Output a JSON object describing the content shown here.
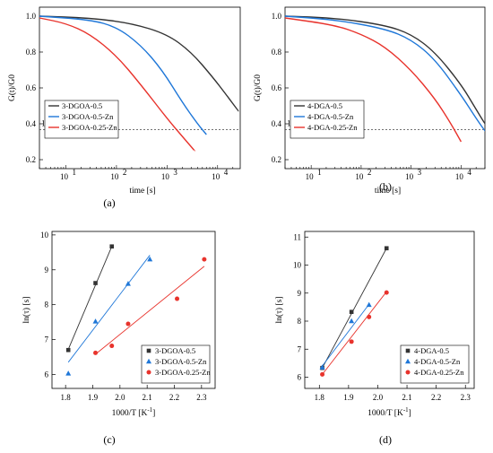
{
  "colors": {
    "black": "#333333",
    "blue": "#1f77d8",
    "red": "#e8332c",
    "dash": "#444444"
  },
  "chart_data": [
    {
      "panel": "a",
      "caption": "(a)",
      "type": "line",
      "xlabel": "time [s]",
      "ylabel": "G(t)/G0",
      "x_scale": "log",
      "xlim": [
        3,
        28000
      ],
      "ylim": [
        0.15,
        1.05
      ],
      "x_tick_labels": [
        "10",
        "10",
        "10",
        "10"
      ],
      "x_tick_exponents": [
        "1",
        "2",
        "3",
        "4"
      ],
      "y_tick_labels": [
        "0.2",
        "0.4",
        "0.6",
        "0.8",
        "1.0"
      ],
      "y_ticks": [
        0.2,
        0.4,
        0.6,
        0.8,
        1.0
      ],
      "reference_line": {
        "label": "1/e",
        "y": 0.368
      },
      "legend_position": "middle-left",
      "series": [
        {
          "name": "3-DGOA-0.5",
          "color": "black",
          "x": [
            3,
            30,
            200,
            1000,
            3000,
            8000,
            15000,
            26000
          ],
          "y": [
            1.0,
            0.99,
            0.96,
            0.9,
            0.8,
            0.66,
            0.56,
            0.47
          ]
        },
        {
          "name": "3-DGOA-0.5-Zn",
          "color": "blue",
          "x": [
            3,
            30,
            100,
            300,
            800,
            2000,
            4000,
            6000
          ],
          "y": [
            1.0,
            0.98,
            0.94,
            0.84,
            0.7,
            0.52,
            0.4,
            0.34
          ]
        },
        {
          "name": "3-DGOA-0.25-Zn",
          "color": "red",
          "x": [
            3,
            10,
            30,
            100,
            300,
            1000,
            2000,
            3500
          ],
          "y": [
            0.99,
            0.96,
            0.9,
            0.78,
            0.62,
            0.43,
            0.33,
            0.25
          ]
        }
      ]
    },
    {
      "panel": "b",
      "caption": "(b)",
      "type": "line",
      "xlabel": "time [s]",
      "ylabel": "G(t)/G0",
      "x_scale": "log",
      "xlim": [
        3,
        30000
      ],
      "ylim": [
        0.15,
        1.05
      ],
      "x_tick_labels": [
        "10",
        "10",
        "10",
        "10"
      ],
      "x_tick_exponents": [
        "1",
        "2",
        "3",
        "4"
      ],
      "y_tick_labels": [
        "0.2",
        "0.4",
        "0.6",
        "0.8",
        "1.0"
      ],
      "y_ticks": [
        0.2,
        0.4,
        0.6,
        0.8,
        1.0
      ],
      "reference_line": {
        "label": "1/e",
        "y": 0.368
      },
      "legend_position": "middle-left",
      "series": [
        {
          "name": "4-DGA-0.5",
          "color": "black",
          "x": [
            3,
            30,
            300,
            1000,
            3000,
            10000,
            20000,
            30000
          ],
          "y": [
            1.0,
            0.99,
            0.95,
            0.9,
            0.8,
            0.62,
            0.48,
            0.4
          ]
        },
        {
          "name": "4-DGA-0.5-Zn",
          "color": "blue",
          "x": [
            3,
            30,
            300,
            1000,
            3000,
            10000,
            20000,
            30000
          ],
          "y": [
            1.0,
            0.98,
            0.93,
            0.87,
            0.76,
            0.56,
            0.43,
            0.36
          ]
        },
        {
          "name": "4-DGA-0.25-Zn",
          "color": "red",
          "x": [
            3,
            30,
            100,
            300,
            1000,
            3000,
            6000,
            10000
          ],
          "y": [
            0.99,
            0.95,
            0.9,
            0.83,
            0.7,
            0.54,
            0.41,
            0.3
          ]
        }
      ]
    },
    {
      "panel": "c",
      "caption": "(c)",
      "type": "scatter",
      "xlabel": "1000/T [K",
      "xlabel_sup": "-1",
      "xlabel_end": "]",
      "ylabel": "ln(τ) [s]",
      "xlim": [
        1.75,
        2.35
      ],
      "ylim": [
        5.6,
        10.1
      ],
      "x_ticks": [
        1.8,
        1.9,
        2.0,
        2.1,
        2.2,
        2.3
      ],
      "x_tick_labels": [
        "1.8",
        "1.9",
        "2.0",
        "2.1",
        "2.2",
        "2.3"
      ],
      "y_ticks": [
        6,
        7,
        8,
        9,
        10
      ],
      "y_tick_labels": [
        "6",
        "7",
        "8",
        "9",
        "10"
      ],
      "legend_position": "bottom-right",
      "series": [
        {
          "name": "3-DGOA-0.5",
          "color": "black",
          "marker": "square",
          "x": [
            1.81,
            1.91,
            1.97
          ],
          "y": [
            6.7,
            8.62,
            9.67
          ],
          "fit": [
            [
              1.81,
              6.72
            ],
            [
              1.97,
              9.67
            ]
          ]
        },
        {
          "name": "3-DGOA-0.5-Zn",
          "color": "blue",
          "marker": "triangle",
          "x": [
            1.81,
            1.91,
            2.03,
            2.11
          ],
          "y": [
            6.03,
            7.52,
            8.6,
            9.3
          ],
          "fit": [
            [
              1.81,
              6.35
            ],
            [
              2.11,
              9.42
            ]
          ]
        },
        {
          "name": "3-DGOA-0.25-Zn",
          "color": "red",
          "marker": "circle",
          "x": [
            1.91,
            1.97,
            2.03,
            2.21,
            2.31
          ],
          "y": [
            6.62,
            6.82,
            7.45,
            8.17,
            9.3
          ],
          "fit": [
            [
              1.91,
              6.58
            ],
            [
              2.31,
              9.1
            ]
          ]
        }
      ]
    },
    {
      "panel": "d",
      "caption": "(d)",
      "type": "scatter",
      "xlabel": "1000/T [K",
      "xlabel_sup": "-1",
      "xlabel_end": "]",
      "ylabel": "ln(τ) [s]",
      "xlim": [
        1.75,
        2.33
      ],
      "ylim": [
        5.6,
        11.2
      ],
      "x_ticks": [
        1.8,
        1.9,
        2.0,
        2.1,
        2.2,
        2.3
      ],
      "x_tick_labels": [
        "1.8",
        "1.9",
        "2.0",
        "2.1",
        "2.2",
        "2.3"
      ],
      "y_ticks": [
        6,
        7,
        8,
        9,
        10,
        11
      ],
      "y_tick_labels": [
        "6",
        "7",
        "8",
        "9",
        "10",
        "11"
      ],
      "legend_position": "bottom-right",
      "series": [
        {
          "name": "4-DGA-0.5",
          "color": "black",
          "marker": "square",
          "x": [
            1.81,
            1.91,
            2.03
          ],
          "y": [
            6.33,
            8.33,
            10.6
          ],
          "fit": [
            [
              1.81,
              6.33
            ],
            [
              2.03,
              10.6
            ]
          ]
        },
        {
          "name": "4-DGA-0.5-Zn",
          "color": "blue",
          "marker": "triangle",
          "x": [
            1.81,
            1.91,
            1.97
          ],
          "y": [
            6.35,
            8.0,
            8.58
          ],
          "fit": [
            [
              1.81,
              6.4
            ],
            [
              1.97,
              8.6
            ]
          ]
        },
        {
          "name": "4-DGA-0.25-Zn",
          "color": "red",
          "marker": "circle",
          "x": [
            1.81,
            1.91,
            1.97,
            2.03
          ],
          "y": [
            6.1,
            7.27,
            8.15,
            9.02
          ],
          "fit": [
            [
              1.81,
              6.1
            ],
            [
              2.03,
              9.05
            ]
          ]
        }
      ]
    }
  ]
}
